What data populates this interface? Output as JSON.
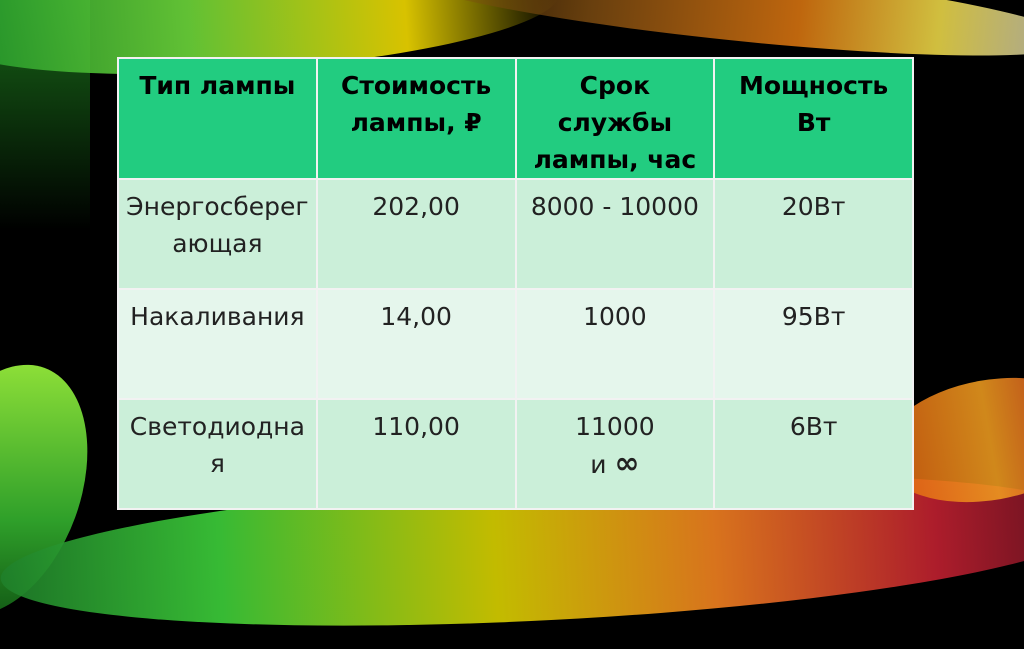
{
  "table": {
    "headers": [
      "Тип лампы",
      "Стоимость лампы, ₽",
      "Срок службы лампы, час",
      "Мощность Вт"
    ],
    "rows": [
      {
        "type": "Энергосберегающая",
        "cost": "202,00",
        "life": "8000 - 10000",
        "power": "20Вт"
      },
      {
        "type": "Накаливания",
        "cost": "14,00",
        "life": "1000",
        "power": "95Вт"
      },
      {
        "type": "Светодиодная",
        "cost": "110,00",
        "life": "11000",
        "life_extra_prefix": "и",
        "life_extra_symbol": "∞",
        "power": "6Вт"
      }
    ]
  },
  "colors": {
    "header": "#22cc80",
    "row_dark": "#cbefd9",
    "row_light": "#e5f6ec",
    "background": "#000000"
  }
}
